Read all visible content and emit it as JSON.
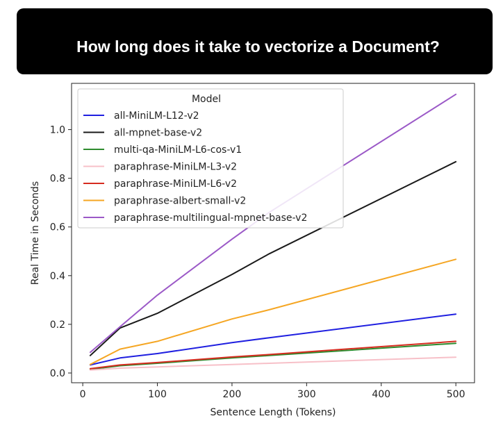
{
  "header": {
    "title": "How long does it take to vectorize a Document?"
  },
  "chart_data": {
    "type": "line",
    "title": "",
    "xlabel": "Sentence Length (Tokens)",
    "ylabel": "Real Time in Seconds",
    "xlim": [
      -15,
      525
    ],
    "ylim": [
      -0.04,
      1.19
    ],
    "xticks": [
      "0",
      "100",
      "200",
      "300",
      "400",
      "500"
    ],
    "yticks": [
      "0.0",
      "0.2",
      "0.4",
      "0.6",
      "0.8",
      "1.0"
    ],
    "grid": false,
    "legend": {
      "title": "Model",
      "placement": "top-left"
    },
    "series": [
      {
        "name": "all-MiniLM-L12-v2",
        "color": "#1f1fe0",
        "x": [
          10,
          50,
          100,
          200,
          250,
          500
        ],
        "y": [
          0.033,
          0.062,
          0.08,
          0.125,
          0.145,
          0.242
        ]
      },
      {
        "name": "all-mpnet-base-v2",
        "color": "#1a1a1a",
        "x": [
          10,
          50,
          100,
          200,
          250,
          500
        ],
        "y": [
          0.072,
          0.185,
          0.245,
          0.405,
          0.49,
          0.868
        ]
      },
      {
        "name": "multi-qa-MiniLM-L6-cos-v1",
        "color": "#2e8b2e",
        "x": [
          10,
          50,
          100,
          200,
          250,
          500
        ],
        "y": [
          0.015,
          0.03,
          0.04,
          0.062,
          0.072,
          0.122
        ]
      },
      {
        "name": "paraphrase-MiniLM-L3-v2",
        "color": "#f7c0c8",
        "x": [
          10,
          50,
          100,
          200,
          250,
          500
        ],
        "y": [
          0.012,
          0.02,
          0.025,
          0.035,
          0.04,
          0.065
        ]
      },
      {
        "name": "paraphrase-MiniLM-L6-v2",
        "color": "#d62b1f",
        "x": [
          10,
          50,
          100,
          200,
          250,
          500
        ],
        "y": [
          0.018,
          0.033,
          0.043,
          0.066,
          0.076,
          0.13
        ]
      },
      {
        "name": "paraphrase-albert-small-v2",
        "color": "#f5a623",
        "x": [
          10,
          50,
          100,
          200,
          250,
          500
        ],
        "y": [
          0.035,
          0.098,
          0.13,
          0.222,
          0.26,
          0.467
        ]
      },
      {
        "name": "paraphrase-multilingual-mpnet-base-v2",
        "color": "#9b59c7",
        "x": [
          10,
          50,
          100,
          200,
          250,
          500
        ],
        "y": [
          0.085,
          0.19,
          0.32,
          0.55,
          0.66,
          1.145
        ]
      }
    ]
  }
}
